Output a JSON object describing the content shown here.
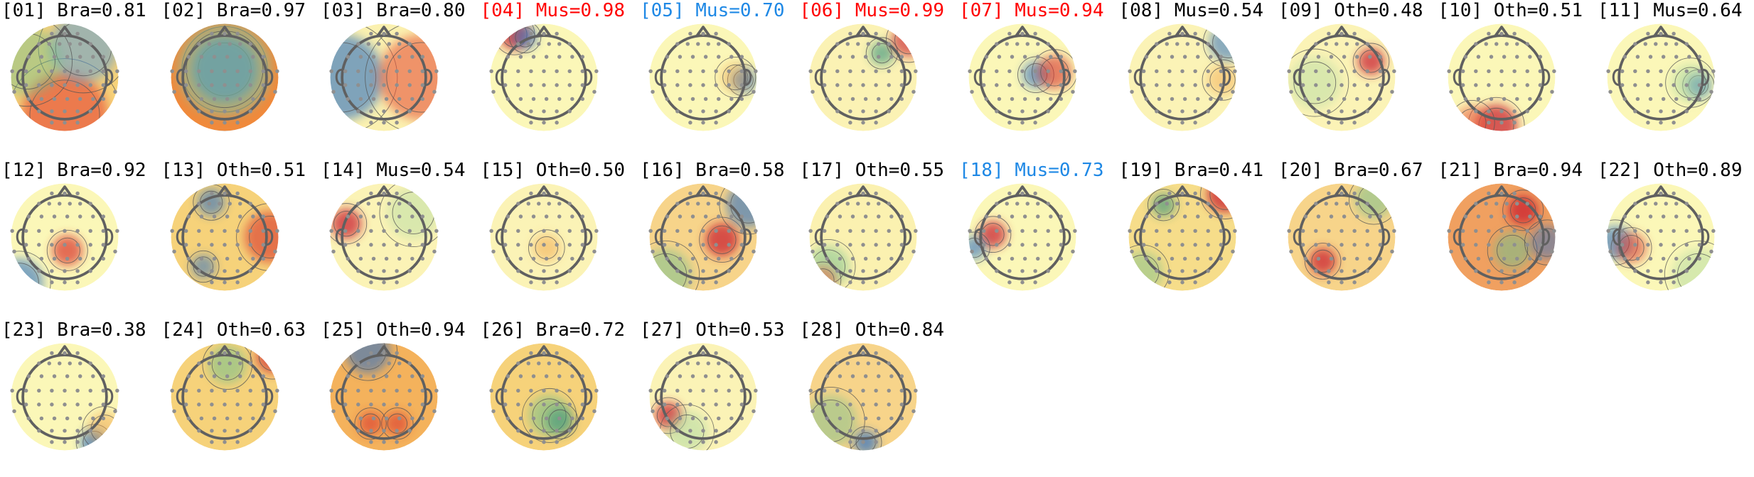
{
  "colors": {
    "default_label": "#000000",
    "muscle_high_conf": "#ff0000",
    "muscle_low_conf": "#1e88e5",
    "map_low": "#2c5fb0",
    "map_mid": "#fbf7b8",
    "map_high": "#c8142a",
    "contour": "#555555",
    "head_outline": "#606060",
    "electrode": "#8f8f8f"
  },
  "components": [
    {
      "id": "01",
      "label": "[01] Bra=0.81",
      "color": "#000000"
    },
    {
      "id": "02",
      "label": "[02] Bra=0.97",
      "color": "#000000"
    },
    {
      "id": "03",
      "label": "[03] Bra=0.80",
      "color": "#000000"
    },
    {
      "id": "04",
      "label": "[04] Mus=0.98",
      "color": "#ff0000"
    },
    {
      "id": "05",
      "label": "[05] Mus=0.70",
      "color": "#1e88e5"
    },
    {
      "id": "06",
      "label": "[06] Mus=0.99",
      "color": "#ff0000"
    },
    {
      "id": "07",
      "label": "[07] Mus=0.94",
      "color": "#ff0000"
    },
    {
      "id": "08",
      "label": "[08] Mus=0.54",
      "color": "#000000"
    },
    {
      "id": "09",
      "label": "[09] Oth=0.48",
      "color": "#000000"
    },
    {
      "id": "10",
      "label": "[10] Oth=0.51",
      "color": "#000000"
    },
    {
      "id": "11",
      "label": "[11] Mus=0.64",
      "color": "#000000"
    },
    {
      "id": "12",
      "label": "[12] Bra=0.92",
      "color": "#000000"
    },
    {
      "id": "13",
      "label": "[13] Oth=0.51",
      "color": "#000000"
    },
    {
      "id": "14",
      "label": "[14] Mus=0.54",
      "color": "#000000"
    },
    {
      "id": "15",
      "label": "[15] Oth=0.50",
      "color": "#000000"
    },
    {
      "id": "16",
      "label": "[16] Bra=0.58",
      "color": "#000000"
    },
    {
      "id": "17",
      "label": "[17] Oth=0.55",
      "color": "#000000"
    },
    {
      "id": "18",
      "label": "[18] Mus=0.73",
      "color": "#1e88e5"
    },
    {
      "id": "19",
      "label": "[19] Bra=0.41",
      "color": "#000000"
    },
    {
      "id": "20",
      "label": "[20] Bra=0.67",
      "color": "#000000"
    },
    {
      "id": "21",
      "label": "[21] Bra=0.94",
      "color": "#000000"
    },
    {
      "id": "22",
      "label": "[22] Oth=0.89",
      "color": "#000000"
    },
    {
      "id": "23",
      "label": "[23] Bra=0.38",
      "color": "#000000"
    },
    {
      "id": "24",
      "label": "[24] Oth=0.63",
      "color": "#000000"
    },
    {
      "id": "25",
      "label": "[25] Oth=0.94",
      "color": "#000000"
    },
    {
      "id": "26",
      "label": "[26] Bra=0.72",
      "color": "#000000"
    },
    {
      "id": "27",
      "label": "[27] Oth=0.53",
      "color": "#000000"
    },
    {
      "id": "28",
      "label": "[28] Oth=0.84",
      "color": "#000000"
    }
  ]
}
